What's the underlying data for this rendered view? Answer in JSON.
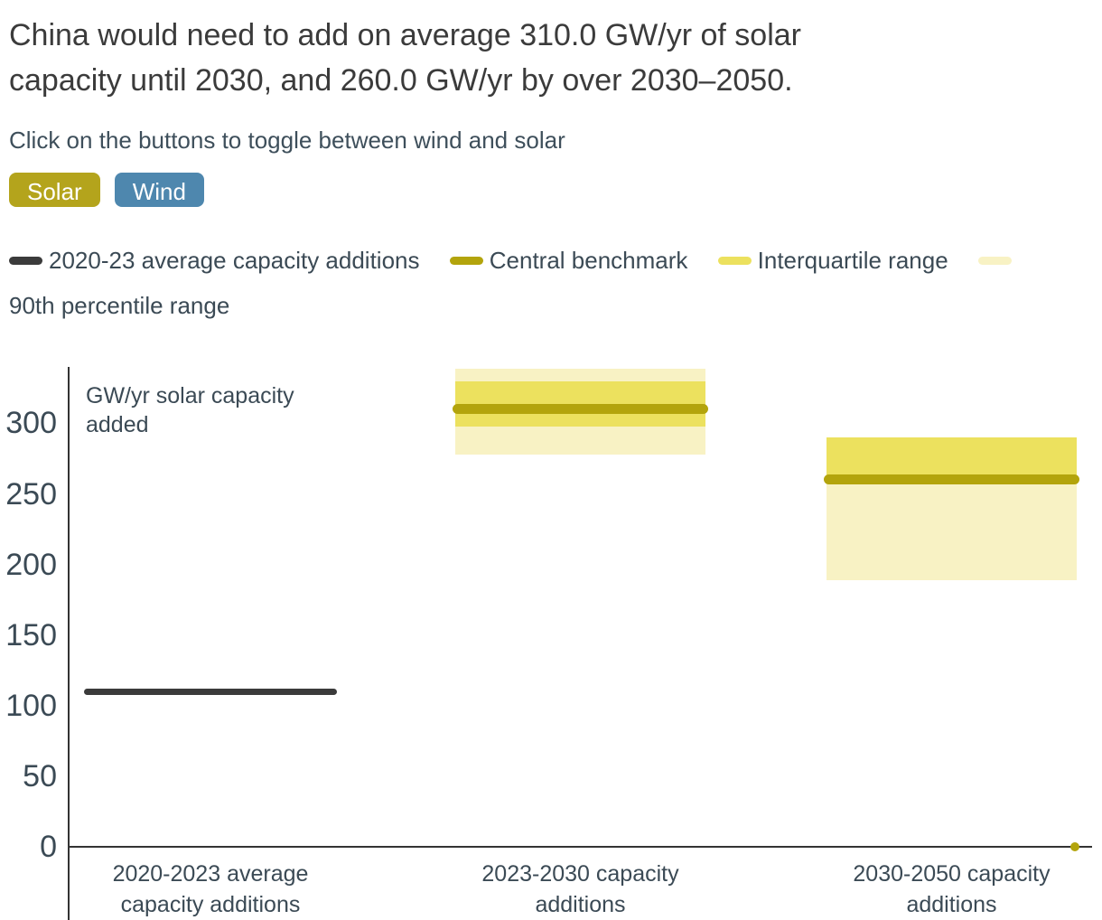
{
  "header": {
    "title_lines": [
      "China would need to add on average 310.0 GW/yr of solar",
      "capacity until 2030, and 260.0 GW/yr by over 2030–2050."
    ],
    "subtitle": "Click on the buttons to toggle between wind and solar"
  },
  "buttons": [
    {
      "label": "Solar",
      "color_key": "solar"
    },
    {
      "label": "Wind",
      "color_key": "wind"
    }
  ],
  "legend": {
    "items": [
      {
        "label": "2020-23 average capacity additions",
        "color_key": "average"
      },
      {
        "label": "Central benchmark",
        "color_key": "benchmark"
      },
      {
        "label": "Interquartile range",
        "color_key": "interquartile"
      },
      {
        "label": "90th percentile range",
        "color_key": "p90"
      }
    ]
  },
  "colors": {
    "solar": "#b4a41c",
    "wind": "#4e87ae",
    "average": "#3b3b3b",
    "benchmark": "#b3a40c",
    "interquartile": "#ece15e",
    "p90": "#f8f2c4",
    "axis": "#333333",
    "text_slate": "#3b4a55"
  },
  "chart_data": {
    "type": "box-benchmark",
    "ylabel_lines": [
      "GW/yr solar capacity",
      "added"
    ],
    "yticks": [
      0,
      50,
      100,
      150,
      200,
      250,
      300
    ],
    "ylim": [
      0,
      340
    ],
    "grid": false,
    "categories": [
      {
        "label_lines": [
          "2020-2023 average",
          "capacity additions"
        ],
        "average": 110
      },
      {
        "label_lines": [
          "2023-2030 capacity",
          "additions"
        ],
        "central": 310,
        "iqr": [
          298,
          330
        ],
        "p90": [
          278,
          339
        ]
      },
      {
        "label_lines": [
          "2030-2050 capacity",
          "additions"
        ],
        "central": 260,
        "iqr": [
          258,
          290
        ],
        "p90": [
          189,
          290
        ]
      }
    ]
  }
}
